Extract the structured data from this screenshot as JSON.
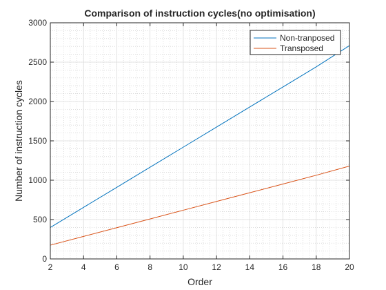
{
  "chart_data": {
    "type": "line",
    "title": "Comparison of instruction cycles(no optimisation)",
    "xlabel": "Order",
    "ylabel": "Number of instruction cycles",
    "xlim": [
      2,
      20
    ],
    "ylim": [
      0,
      3000
    ],
    "xticks": [
      2,
      4,
      6,
      8,
      10,
      12,
      14,
      16,
      18,
      20
    ],
    "yticks": [
      0,
      500,
      1000,
      1500,
      2000,
      2500,
      3000
    ],
    "grid": "major and minor, dotted",
    "legend_position": "top-right",
    "x": [
      2,
      4,
      6,
      8,
      10,
      12,
      14,
      16,
      18,
      20
    ],
    "series": [
      {
        "name": "Non-tranposed",
        "color": "#0072BD",
        "values": [
          400,
          655,
          910,
          1165,
          1420,
          1675,
          1930,
          2185,
          2440,
          2710
        ]
      },
      {
        "name": "Transposed",
        "color": "#D95319",
        "values": [
          175,
          286,
          397,
          508,
          619,
          730,
          841,
          952,
          1063,
          1180
        ]
      }
    ]
  }
}
